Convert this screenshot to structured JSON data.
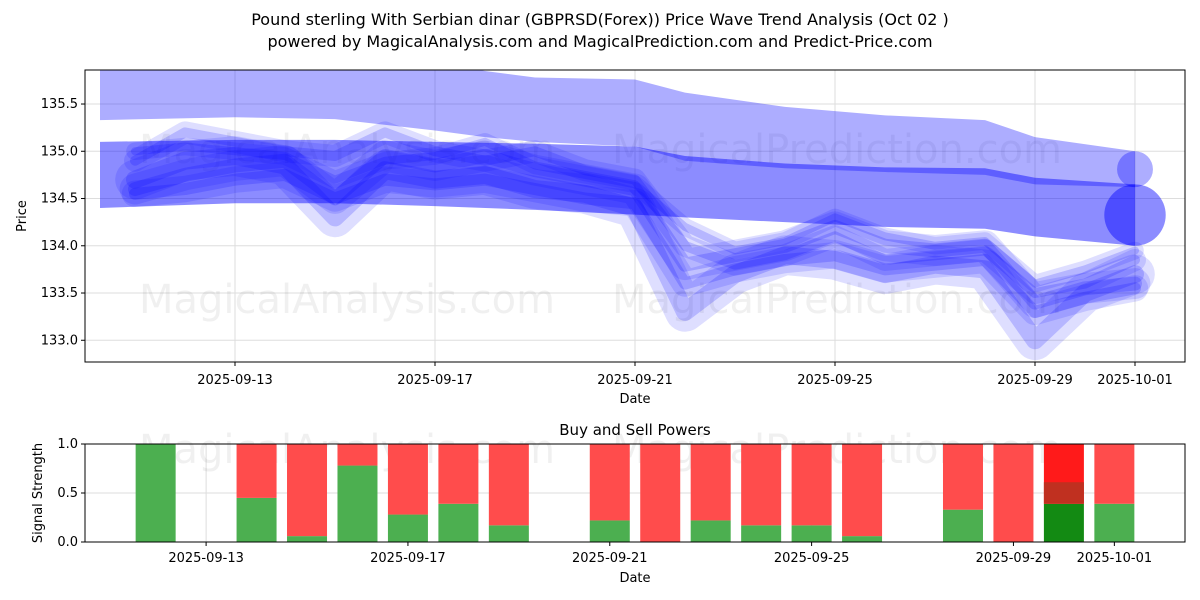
{
  "title_line1": "Pound sterling With Serbian dinar (GBPRSD(Forex)) Price Wave Trend Analysis (Oct 02 )",
  "title_line2": "powered by MagicalAnalysis.com and MagicalPrediction.com and Predict-Price.com",
  "watermarks": [
    "MagicalAnalysis.com",
    "MagicalPrediction.com"
  ],
  "chart_data": [
    {
      "type": "area",
      "title": "",
      "xlabel": "Date",
      "ylabel": "Price",
      "xlim": [
        "2025-09-10",
        "2025-10-02"
      ],
      "ylim": [
        132.77,
        135.86
      ],
      "yticks": [
        "133.0",
        "133.5",
        "134.0",
        "134.5",
        "135.0",
        "135.5"
      ],
      "ytick_values": [
        133.0,
        133.5,
        134.0,
        134.5,
        135.0,
        135.5
      ],
      "xticks": [
        "2025-09-13",
        "2025-09-17",
        "2025-09-21",
        "2025-09-25",
        "2025-09-29",
        "2025-10-01"
      ],
      "xtick_days": [
        3,
        7,
        11,
        15,
        19,
        21
      ],
      "grid": true,
      "color": "#0000ff",
      "bands": [
        {
          "x": [
            0.3,
            3,
            5,
            7,
            8,
            9,
            11,
            12,
            14,
            16,
            18,
            19,
            21
          ],
          "upper": [
            136.0,
            136.0,
            136.0,
            135.95,
            135.85,
            135.78,
            135.76,
            135.62,
            135.47,
            135.38,
            135.33,
            135.15,
            135.0
          ],
          "lower": [
            135.33,
            135.36,
            135.34,
            135.22,
            135.15,
            135.1,
            135.05,
            134.9,
            134.82,
            134.78,
            134.75,
            134.65,
            134.62
          ]
        },
        {
          "x": [
            0.3,
            3,
            5,
            7,
            9,
            11,
            12,
            14,
            16,
            18,
            19,
            21
          ],
          "upper": [
            135.1,
            135.12,
            135.12,
            135.1,
            135.08,
            135.05,
            134.95,
            134.87,
            134.83,
            134.82,
            134.72,
            134.65
          ],
          "lower": [
            134.4,
            134.45,
            134.45,
            134.42,
            134.38,
            134.33,
            134.3,
            134.25,
            134.2,
            134.18,
            134.1,
            134.0
          ]
        }
      ],
      "waves": [
        {
          "x": [
            1,
            2,
            3,
            4,
            5,
            6,
            7,
            8,
            9,
            10,
            11,
            12,
            13,
            14,
            15,
            16,
            17,
            18,
            19,
            20,
            21
          ],
          "y": [
            134.6,
            134.75,
            134.85,
            134.9,
            134.5,
            134.95,
            134.85,
            134.95,
            134.8,
            134.7,
            134.6,
            133.8,
            133.9,
            134.0,
            134.2,
            134.0,
            133.95,
            134.0,
            133.4,
            133.55,
            133.6
          ]
        },
        {
          "x": [
            1,
            2,
            3,
            4,
            5,
            6,
            7,
            8,
            9,
            10,
            11,
            12,
            13,
            14,
            15,
            16,
            17,
            18,
            19,
            20,
            21
          ],
          "y": [
            134.9,
            135.2,
            135.1,
            135.0,
            134.95,
            135.2,
            135.0,
            134.9,
            135.0,
            134.8,
            134.7,
            134.0,
            133.8,
            133.9,
            134.1,
            133.85,
            133.9,
            133.95,
            133.5,
            133.6,
            133.85
          ]
        },
        {
          "x": [
            1,
            2,
            3,
            4,
            5,
            6,
            7,
            8,
            9,
            10,
            11,
            12,
            13,
            14,
            15,
            16,
            17,
            18,
            19,
            20,
            21
          ],
          "y": [
            134.7,
            134.9,
            134.95,
            134.85,
            134.3,
            134.8,
            134.7,
            134.75,
            134.6,
            134.55,
            134.4,
            133.3,
            133.7,
            133.9,
            133.85,
            133.7,
            133.8,
            133.75,
            133.0,
            133.5,
            133.7
          ]
        },
        {
          "x": [
            1,
            2,
            3,
            4,
            5,
            6,
            7,
            8,
            9,
            10,
            11,
            12,
            13,
            14,
            15,
            16,
            17,
            18,
            19,
            20,
            21
          ],
          "y": [
            135.0,
            135.05,
            135.0,
            134.95,
            134.7,
            134.9,
            134.95,
            135.1,
            134.85,
            134.75,
            134.65,
            134.2,
            133.95,
            134.05,
            134.3,
            134.1,
            134.0,
            134.05,
            133.6,
            133.75,
            133.95
          ]
        },
        {
          "x": [
            1,
            2,
            3,
            4,
            5,
            6,
            7,
            8,
            9,
            10,
            11,
            12,
            13,
            14,
            15,
            16,
            17,
            18,
            19,
            20,
            21
          ],
          "y": [
            134.55,
            134.6,
            134.7,
            134.75,
            134.5,
            134.7,
            134.65,
            134.7,
            134.6,
            134.5,
            134.45,
            133.6,
            133.75,
            133.85,
            133.9,
            133.75,
            133.8,
            133.85,
            133.3,
            133.45,
            133.55
          ]
        }
      ]
    },
    {
      "type": "bar",
      "title": "Buy and Sell Powers",
      "xlabel": "Date",
      "ylabel": "Signal Strength",
      "ylim": [
        0,
        1.0
      ],
      "yticks": [
        "0.0",
        "0.5",
        "1.0"
      ],
      "ytick_values": [
        0,
        0.5,
        1.0
      ],
      "xticks": [
        "2025-09-13",
        "2025-09-17",
        "2025-09-21",
        "2025-09-25",
        "2025-09-29",
        "2025-10-01"
      ],
      "xtick_days": [
        3,
        7,
        11,
        15,
        19,
        21
      ],
      "xlim_days": [
        0.6,
        22.4
      ],
      "categories": [
        "2025-09-12",
        "2025-09-14",
        "2025-09-15",
        "2025-09-16",
        "2025-09-17",
        "2025-09-18",
        "2025-09-19",
        "2025-09-21",
        "2025-09-22",
        "2025-09-23",
        "2025-09-24",
        "2025-09-25",
        "2025-09-26",
        "2025-09-28",
        "2025-09-29",
        "2025-09-30",
        "2025-10-01"
      ],
      "days": [
        2,
        4,
        5,
        6,
        7,
        8,
        9,
        11,
        12,
        13,
        14,
        15,
        16,
        18,
        19,
        20,
        21
      ],
      "series": [
        {
          "name": "Buy",
          "color": "#4caf50",
          "values": [
            1.0,
            0.45,
            0.06,
            0.78,
            0.28,
            0.39,
            0.17,
            0.22,
            0.0,
            0.22,
            0.17,
            0.17,
            0.06,
            0.33,
            0.0,
            0.39,
            0.39
          ]
        },
        {
          "name": "Sell",
          "color": "#ff4c4c",
          "values": [
            0.0,
            0.55,
            0.94,
            0.22,
            0.72,
            0.61,
            0.83,
            0.78,
            1.0,
            0.78,
            0.83,
            0.83,
            0.94,
            0.67,
            1.0,
            0.61,
            0.61
          ]
        }
      ],
      "highlight_day": "2025-09-30"
    }
  ]
}
